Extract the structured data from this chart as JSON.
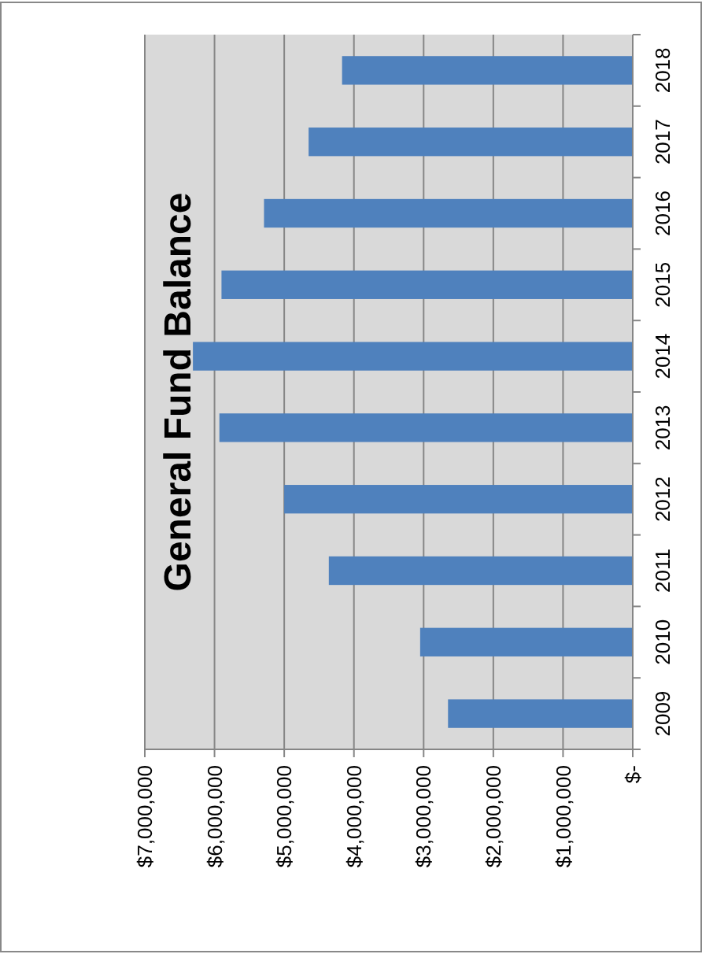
{
  "chart_data": {
    "type": "bar",
    "orientation": "horizontal",
    "title": "General Fund Balance",
    "categories": [
      "2018",
      "2017",
      "2016",
      "2015",
      "2014",
      "2013",
      "2012",
      "2011",
      "2010",
      "2009"
    ],
    "values": [
      4170000,
      4650000,
      5290000,
      5900000,
      6310000,
      5930000,
      5000000,
      4360000,
      3050000,
      2650000
    ],
    "color": "#4f81bd",
    "xlim": [
      7000000,
      0
    ],
    "xticks": [
      {
        "value": 7000000,
        "label": "$7,000,000"
      },
      {
        "value": 6000000,
        "label": "$6,000,000"
      },
      {
        "value": 5000000,
        "label": "$5,000,000"
      },
      {
        "value": 4000000,
        "label": "$4,000,000"
      },
      {
        "value": 3000000,
        "label": "$3,000,000"
      },
      {
        "value": 2000000,
        "label": "$2,000,000"
      },
      {
        "value": 1000000,
        "label": "$1,000,000"
      },
      {
        "value": 0,
        "label": "$-"
      }
    ],
    "grid": "x"
  }
}
